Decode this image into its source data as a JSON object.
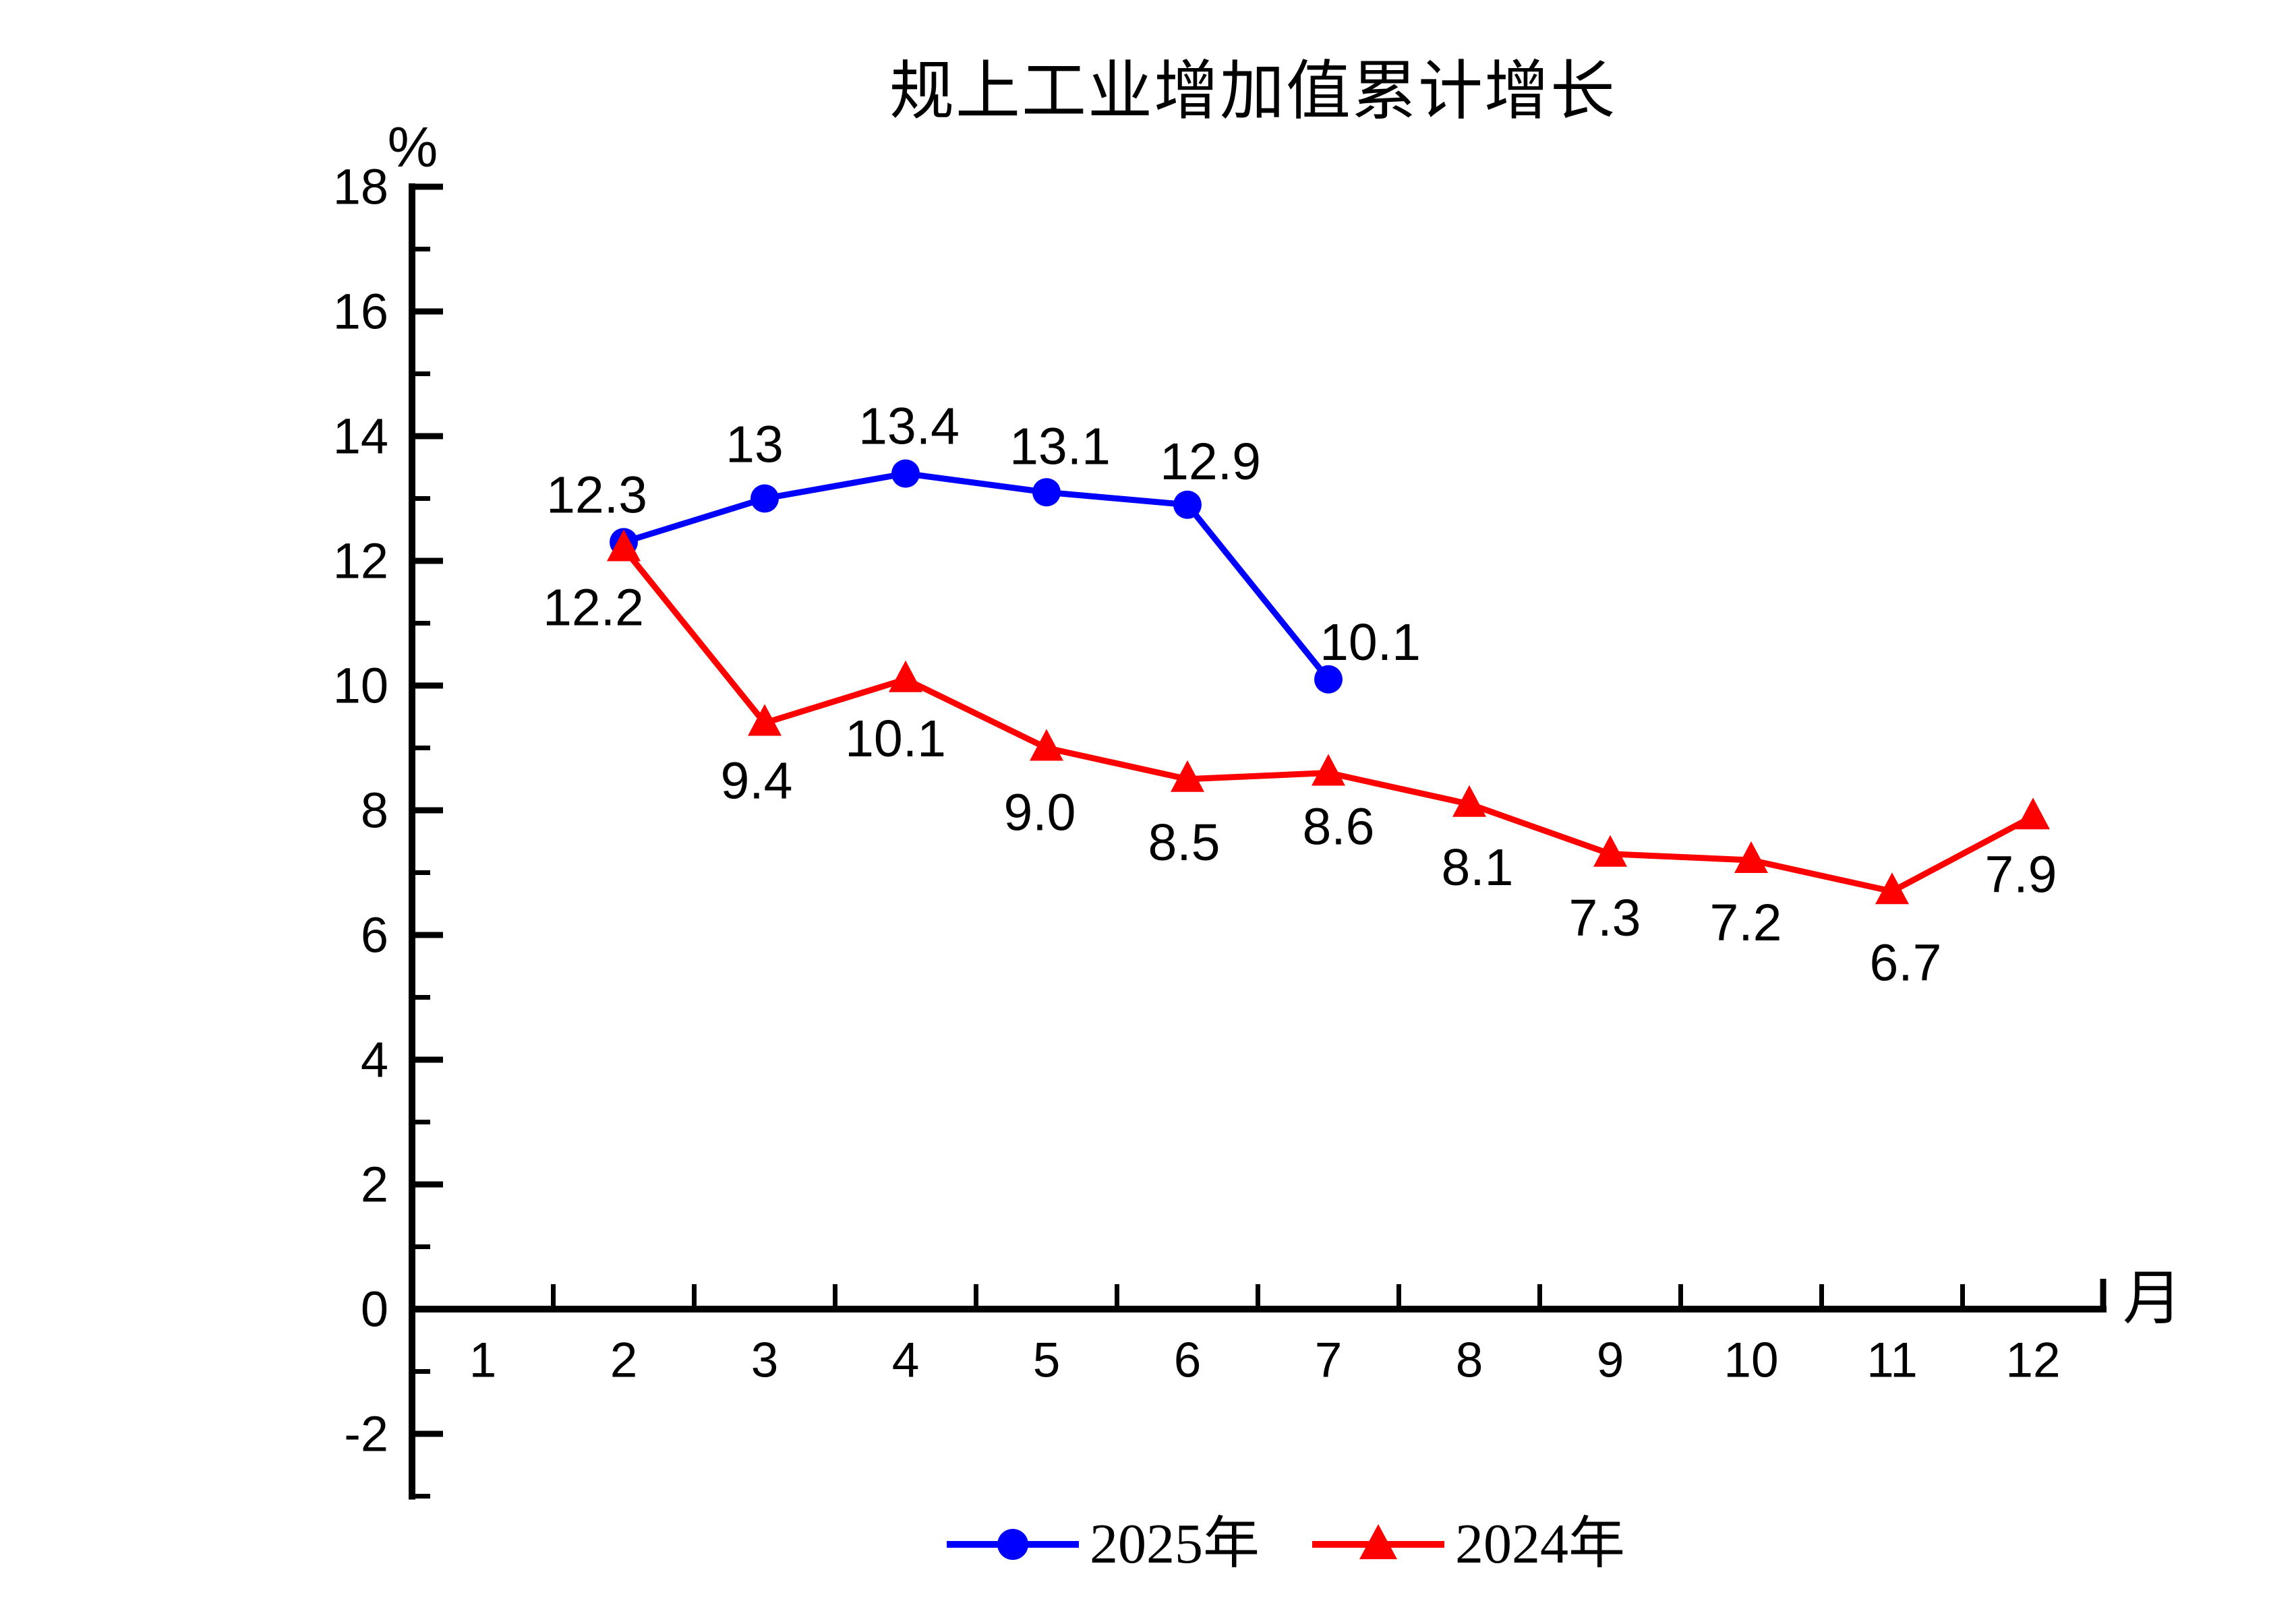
{
  "title": "规上工业增加值累计增长",
  "y_axis_unit": "%",
  "x_axis_unit": "月",
  "colors": {
    "series_2025": "#0000ff",
    "series_2024": "#ff0000",
    "axis": "#000000",
    "text": "#000000",
    "background": "#ffffff"
  },
  "legend": [
    {
      "label": "2025年",
      "color": "#0000ff",
      "marker": "circle"
    },
    {
      "label": "2024年",
      "color": "#ff0000",
      "marker": "triangle"
    }
  ],
  "chart_data": {
    "type": "line",
    "title": "规上工业增加值累计增长",
    "xlabel": "月",
    "ylabel": "%",
    "x_categories": [
      1,
      2,
      3,
      4,
      5,
      6,
      7,
      8,
      9,
      10,
      11,
      12
    ],
    "y_ticks_labeled": [
      -2,
      0,
      2,
      4,
      6,
      8,
      10,
      12,
      14,
      16,
      18
    ],
    "ylim": [
      -3,
      18
    ],
    "grid": false,
    "legend_position": "bottom",
    "series": [
      {
        "name": "2025年",
        "color": "#0000ff",
        "marker": "circle",
        "points": [
          {
            "month": 2,
            "value": 12.3,
            "label": "12.3",
            "dx": -40,
            "dy": -70
          },
          {
            "month": 3,
            "value": 13,
            "label": "13",
            "dx": -15,
            "dy": -80
          },
          {
            "month": 4,
            "value": 13.4,
            "label": "13.4",
            "dx": 5,
            "dy": -70
          },
          {
            "month": 5,
            "value": 13.1,
            "label": "13.1",
            "dx": 20,
            "dy": -68
          },
          {
            "month": 6,
            "value": 12.9,
            "label": "12.9",
            "dx": 34,
            "dy": -64
          },
          {
            "month": 7,
            "value": 10.1,
            "label": "10.1",
            "dx": 62,
            "dy": -55
          }
        ]
      },
      {
        "name": "2024年",
        "color": "#ff0000",
        "marker": "triangle",
        "points": [
          {
            "month": 2,
            "value": 12.2,
            "label": "12.2",
            "dx": -45,
            "dy": 88
          },
          {
            "month": 3,
            "value": 9.4,
            "label": "9.4",
            "dx": -12,
            "dy": 86
          },
          {
            "month": 4,
            "value": 10.1,
            "label": "10.1",
            "dx": -15,
            "dy": 88
          },
          {
            "month": 5,
            "value": 9.0,
            "label": "9.0",
            "dx": -10,
            "dy": 96
          },
          {
            "month": 6,
            "value": 8.5,
            "label": "8.5",
            "dx": -5,
            "dy": 94
          },
          {
            "month": 7,
            "value": 8.6,
            "label": "8.6",
            "dx": 15,
            "dy": 80
          },
          {
            "month": 8,
            "value": 8.1,
            "label": "8.1",
            "dx": 12,
            "dy": 94
          },
          {
            "month": 9,
            "value": 7.3,
            "label": "7.3",
            "dx": -8,
            "dy": 95
          },
          {
            "month": 10,
            "value": 7.2,
            "label": "7.2",
            "dx": -8,
            "dy": 93
          },
          {
            "month": 11,
            "value": 6.7,
            "label": "6.7",
            "dx": 20,
            "dy": 106
          },
          {
            "month": 12,
            "value": 7.9,
            "label": "7.9",
            "dx": -18,
            "dy": 86
          }
        ]
      }
    ]
  }
}
